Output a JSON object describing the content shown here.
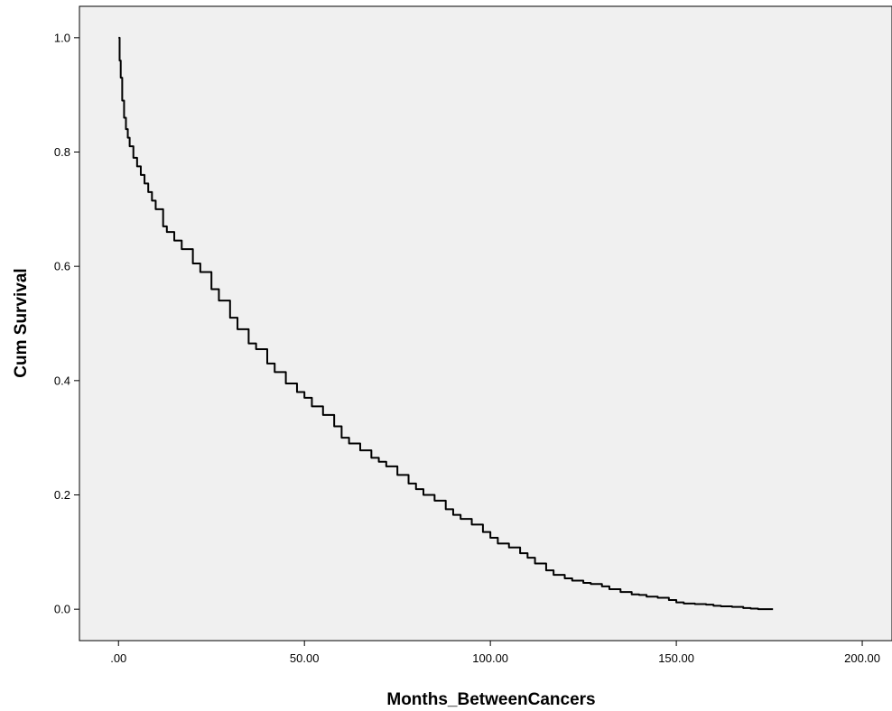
{
  "chart_data": {
    "type": "line",
    "title": "",
    "xlabel": "Months_BetweenCancers",
    "ylabel": "Cum Survival",
    "xlim": [
      -10.5,
      208
    ],
    "ylim": [
      -0.055,
      1.055
    ],
    "x_ticks": [
      0,
      50,
      100,
      150,
      200
    ],
    "x_tick_labels": [
      ".00",
      "50.00",
      "100.00",
      "150.00",
      "200.00"
    ],
    "y_ticks": [
      0.0,
      0.2,
      0.4,
      0.6,
      0.8,
      1.0
    ],
    "y_tick_labels": [
      "0.0",
      "0.2",
      "0.4",
      "0.6",
      "0.8",
      "1.0"
    ],
    "grid": false,
    "legend": "none",
    "background_color": "#f0f0f0",
    "line_color": "#000000",
    "series": [
      {
        "x": [
          0,
          0.3,
          0.6,
          1,
          1.5,
          2,
          2.5,
          3,
          4,
          5,
          6,
          7,
          8,
          9,
          10,
          12,
          13,
          15,
          17,
          20,
          22,
          25,
          27,
          30,
          32,
          35,
          37,
          40,
          42,
          45,
          48,
          50,
          52,
          55,
          58,
          60,
          62,
          65,
          68,
          70,
          72,
          75,
          78,
          80,
          82,
          85,
          88,
          90,
          92,
          95,
          98,
          100,
          102,
          105,
          108,
          110,
          112,
          115,
          117,
          120,
          122,
          125,
          127,
          130,
          132,
          135,
          138,
          140,
          142,
          145,
          148,
          150,
          152,
          155,
          158,
          160,
          162,
          165,
          168,
          170,
          172,
          174,
          176
        ],
        "y": [
          1.0,
          0.96,
          0.93,
          0.89,
          0.86,
          0.84,
          0.825,
          0.81,
          0.79,
          0.775,
          0.76,
          0.745,
          0.73,
          0.715,
          0.7,
          0.67,
          0.66,
          0.645,
          0.63,
          0.605,
          0.59,
          0.56,
          0.54,
          0.51,
          0.49,
          0.465,
          0.455,
          0.43,
          0.415,
          0.395,
          0.38,
          0.37,
          0.355,
          0.34,
          0.32,
          0.3,
          0.29,
          0.278,
          0.265,
          0.258,
          0.25,
          0.235,
          0.22,
          0.21,
          0.2,
          0.19,
          0.175,
          0.165,
          0.158,
          0.148,
          0.135,
          0.125,
          0.115,
          0.108,
          0.098,
          0.09,
          0.08,
          0.068,
          0.06,
          0.054,
          0.05,
          0.046,
          0.044,
          0.04,
          0.035,
          0.03,
          0.026,
          0.025,
          0.022,
          0.02,
          0.016,
          0.012,
          0.01,
          0.009,
          0.008,
          0.006,
          0.005,
          0.004,
          0.002,
          0.001,
          0.0,
          0.0,
          0.0
        ]
      }
    ]
  }
}
